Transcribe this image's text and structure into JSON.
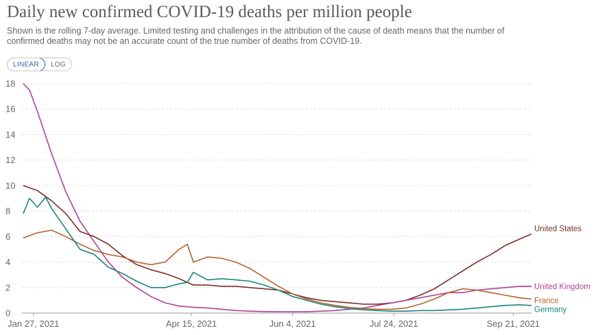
{
  "header": {
    "title": "Daily new confirmed COVID-19 deaths per million people",
    "subtitle": "Shown is the rolling 7-day average. Limited testing and challenges in the attribution of the cause of death means that the number of confirmed deaths may not be an accurate count of the true number of deaths from COVID-19."
  },
  "controls": {
    "linear_label": "LINEAR",
    "log_label": "LOG",
    "selected": "LINEAR"
  },
  "chart_data": {
    "type": "line",
    "title": "Daily new confirmed COVID-19 deaths per million people",
    "xlabel": "",
    "ylabel": "",
    "ylim": [
      0,
      18
    ],
    "yticks": [
      0,
      2,
      4,
      6,
      8,
      10,
      12,
      14,
      16,
      18
    ],
    "xlim": [
      "2021-01-22",
      "2021-09-30"
    ],
    "xtick_dates": [
      "2021-01-27",
      "2021-04-15",
      "2021-06-04",
      "2021-07-24",
      "2021-09-21"
    ],
    "xtick_labels": [
      "Jan 27, 2021",
      "Apr 15, 2021",
      "Jun 4, 2021",
      "Jul 24, 2021",
      "Sep 21, 2021"
    ],
    "grid": "horizontal-dashed",
    "legend": "labels at line ends",
    "series": [
      {
        "name": "United States",
        "color": "#7b2d26",
        "points": [
          [
            "2021-01-22",
            10.0
          ],
          [
            "2021-01-29",
            9.6
          ],
          [
            "2021-02-05",
            8.8
          ],
          [
            "2021-02-12",
            7.8
          ],
          [
            "2021-02-19",
            6.4
          ],
          [
            "2021-02-26",
            6.0
          ],
          [
            "2021-03-05",
            5.4
          ],
          [
            "2021-03-12",
            4.5
          ],
          [
            "2021-03-19",
            3.8
          ],
          [
            "2021-03-26",
            3.4
          ],
          [
            "2021-04-02",
            3.1
          ],
          [
            "2021-04-09",
            2.7
          ],
          [
            "2021-04-16",
            2.2
          ],
          [
            "2021-04-23",
            2.2
          ],
          [
            "2021-04-30",
            2.1
          ],
          [
            "2021-05-07",
            2.1
          ],
          [
            "2021-05-14",
            2.0
          ],
          [
            "2021-05-21",
            1.9
          ],
          [
            "2021-05-28",
            1.8
          ],
          [
            "2021-06-04",
            1.5
          ],
          [
            "2021-06-11",
            1.2
          ],
          [
            "2021-06-18",
            1.0
          ],
          [
            "2021-06-25",
            0.9
          ],
          [
            "2021-07-02",
            0.8
          ],
          [
            "2021-07-09",
            0.7
          ],
          [
            "2021-07-16",
            0.7
          ],
          [
            "2021-07-23",
            0.8
          ],
          [
            "2021-07-30",
            1.0
          ],
          [
            "2021-08-06",
            1.4
          ],
          [
            "2021-08-13",
            1.9
          ],
          [
            "2021-08-20",
            2.6
          ],
          [
            "2021-08-27",
            3.3
          ],
          [
            "2021-09-03",
            4.0
          ],
          [
            "2021-09-10",
            4.6
          ],
          [
            "2021-09-17",
            5.3
          ],
          [
            "2021-09-24",
            5.8
          ],
          [
            "2021-09-30",
            6.2
          ]
        ]
      },
      {
        "name": "United Kingdom",
        "color": "#b13e96",
        "points": [
          [
            "2021-01-22",
            18.0
          ],
          [
            "2021-01-25",
            17.5
          ],
          [
            "2021-01-29",
            15.8
          ],
          [
            "2021-02-05",
            12.5
          ],
          [
            "2021-02-12",
            9.5
          ],
          [
            "2021-02-19",
            7.2
          ],
          [
            "2021-02-26",
            5.6
          ],
          [
            "2021-03-05",
            4.0
          ],
          [
            "2021-03-12",
            2.8
          ],
          [
            "2021-03-19",
            2.0
          ],
          [
            "2021-03-26",
            1.3
          ],
          [
            "2021-04-02",
            0.8
          ],
          [
            "2021-04-09",
            0.55
          ],
          [
            "2021-04-16",
            0.45
          ],
          [
            "2021-04-23",
            0.4
          ],
          [
            "2021-04-30",
            0.3
          ],
          [
            "2021-05-07",
            0.2
          ],
          [
            "2021-05-14",
            0.15
          ],
          [
            "2021-05-21",
            0.12
          ],
          [
            "2021-05-28",
            0.1
          ],
          [
            "2021-06-04",
            0.1
          ],
          [
            "2021-06-11",
            0.1
          ],
          [
            "2021-06-18",
            0.15
          ],
          [
            "2021-06-25",
            0.2
          ],
          [
            "2021-07-02",
            0.3
          ],
          [
            "2021-07-09",
            0.4
          ],
          [
            "2021-07-16",
            0.6
          ],
          [
            "2021-07-23",
            0.8
          ],
          [
            "2021-07-30",
            1.0
          ],
          [
            "2021-08-06",
            1.2
          ],
          [
            "2021-08-13",
            1.4
          ],
          [
            "2021-08-20",
            1.6
          ],
          [
            "2021-08-27",
            1.6
          ],
          [
            "2021-09-03",
            1.8
          ],
          [
            "2021-09-10",
            1.9
          ],
          [
            "2021-09-17",
            2.0
          ],
          [
            "2021-09-24",
            2.1
          ],
          [
            "2021-09-30",
            2.1
          ]
        ]
      },
      {
        "name": "France",
        "color": "#b5622e",
        "points": [
          [
            "2021-01-22",
            5.9
          ],
          [
            "2021-01-29",
            6.3
          ],
          [
            "2021-02-05",
            6.5
          ],
          [
            "2021-02-12",
            6.0
          ],
          [
            "2021-02-19",
            5.4
          ],
          [
            "2021-02-26",
            4.9
          ],
          [
            "2021-03-05",
            4.6
          ],
          [
            "2021-03-12",
            4.4
          ],
          [
            "2021-03-19",
            4.0
          ],
          [
            "2021-03-26",
            3.8
          ],
          [
            "2021-04-02",
            4.0
          ],
          [
            "2021-04-09",
            5.0
          ],
          [
            "2021-04-13",
            5.4
          ],
          [
            "2021-04-16",
            4.0
          ],
          [
            "2021-04-23",
            4.4
          ],
          [
            "2021-04-30",
            4.3
          ],
          [
            "2021-05-07",
            4.0
          ],
          [
            "2021-05-14",
            3.5
          ],
          [
            "2021-05-21",
            2.8
          ],
          [
            "2021-05-28",
            2.1
          ],
          [
            "2021-06-04",
            1.5
          ],
          [
            "2021-06-11",
            1.1
          ],
          [
            "2021-06-18",
            0.8
          ],
          [
            "2021-06-25",
            0.6
          ],
          [
            "2021-07-02",
            0.45
          ],
          [
            "2021-07-09",
            0.35
          ],
          [
            "2021-07-16",
            0.3
          ],
          [
            "2021-07-23",
            0.3
          ],
          [
            "2021-07-30",
            0.4
          ],
          [
            "2021-08-06",
            0.7
          ],
          [
            "2021-08-13",
            1.1
          ],
          [
            "2021-08-20",
            1.6
          ],
          [
            "2021-08-27",
            1.9
          ],
          [
            "2021-09-03",
            1.8
          ],
          [
            "2021-09-10",
            1.6
          ],
          [
            "2021-09-17",
            1.4
          ],
          [
            "2021-09-24",
            1.2
          ],
          [
            "2021-09-30",
            1.1
          ]
        ]
      },
      {
        "name": "Germany",
        "color": "#18857a",
        "points": [
          [
            "2021-01-22",
            7.8
          ],
          [
            "2021-01-25",
            9.0
          ],
          [
            "2021-01-29",
            8.3
          ],
          [
            "2021-02-02",
            9.1
          ],
          [
            "2021-02-05",
            8.2
          ],
          [
            "2021-02-12",
            6.6
          ],
          [
            "2021-02-19",
            5.0
          ],
          [
            "2021-02-26",
            4.6
          ],
          [
            "2021-03-05",
            3.6
          ],
          [
            "2021-03-12",
            3.1
          ],
          [
            "2021-03-19",
            2.5
          ],
          [
            "2021-03-26",
            2.0
          ],
          [
            "2021-04-02",
            2.0
          ],
          [
            "2021-04-09",
            2.3
          ],
          [
            "2021-04-13",
            2.4
          ],
          [
            "2021-04-16",
            3.2
          ],
          [
            "2021-04-23",
            2.6
          ],
          [
            "2021-04-30",
            2.7
          ],
          [
            "2021-05-07",
            2.6
          ],
          [
            "2021-05-14",
            2.5
          ],
          [
            "2021-05-21",
            2.2
          ],
          [
            "2021-05-28",
            1.8
          ],
          [
            "2021-06-04",
            1.3
          ],
          [
            "2021-06-11",
            1.0
          ],
          [
            "2021-06-18",
            0.7
          ],
          [
            "2021-06-25",
            0.5
          ],
          [
            "2021-07-02",
            0.35
          ],
          [
            "2021-07-09",
            0.25
          ],
          [
            "2021-07-16",
            0.2
          ],
          [
            "2021-07-23",
            0.15
          ],
          [
            "2021-07-30",
            0.15
          ],
          [
            "2021-08-06",
            0.2
          ],
          [
            "2021-08-13",
            0.2
          ],
          [
            "2021-08-20",
            0.25
          ],
          [
            "2021-08-27",
            0.3
          ],
          [
            "2021-09-03",
            0.4
          ],
          [
            "2021-09-10",
            0.5
          ],
          [
            "2021-09-17",
            0.6
          ],
          [
            "2021-09-24",
            0.65
          ],
          [
            "2021-09-30",
            0.6
          ]
        ]
      }
    ]
  }
}
